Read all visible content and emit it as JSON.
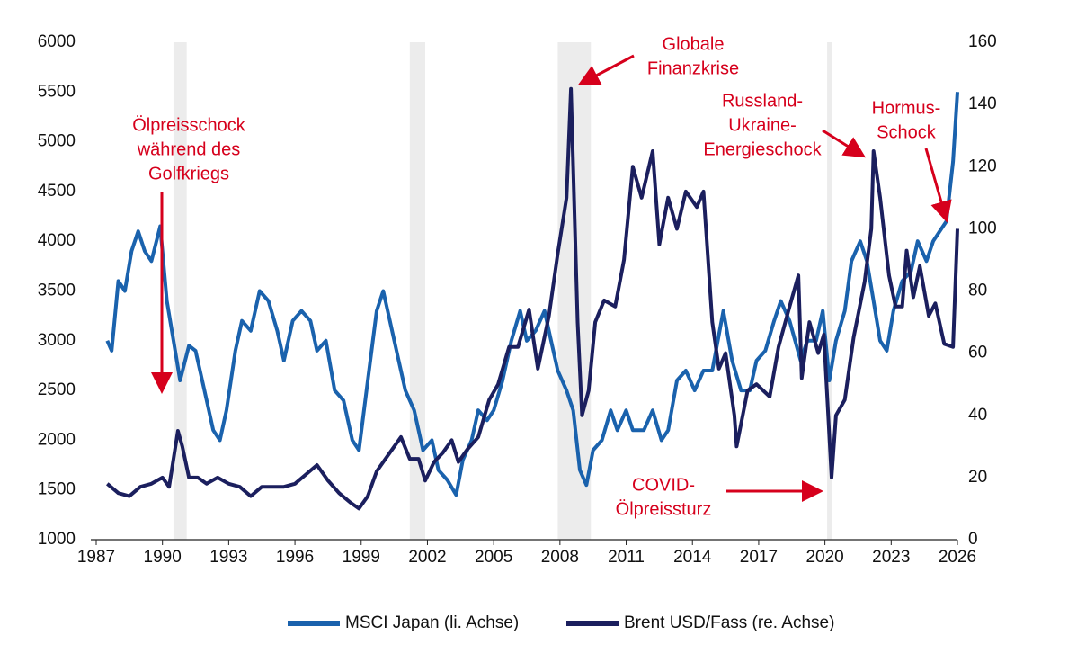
{
  "chart_data": {
    "type": "line",
    "xlim": [
      1987,
      2026
    ],
    "xticks": [
      1987,
      1990,
      1993,
      1996,
      1999,
      2002,
      2005,
      2008,
      2011,
      2014,
      2017,
      2020,
      2023,
      2026
    ],
    "ylim": [
      1000,
      6000
    ],
    "yticks": [
      1000,
      1500,
      2000,
      2500,
      3000,
      3500,
      4000,
      4500,
      5000,
      5500,
      6000
    ],
    "y2lim": [
      0,
      160
    ],
    "y2ticks": [
      0,
      20,
      40,
      60,
      80,
      100,
      120,
      140,
      160
    ],
    "grid": false,
    "legend": "bottom",
    "shaded_periods": [
      [
        1990.5,
        1991.1
      ],
      [
        2001.2,
        2001.9
      ],
      [
        2007.9,
        2009.4
      ],
      [
        2020.1,
        2020.3
      ]
    ],
    "shade_color": "#ececec",
    "annotation_color": "#d6001c",
    "annotations": [
      [
        "Ölpreisschock",
        "während des",
        "Golfkriegs"
      ],
      [
        "Globale",
        "Finanzkrise"
      ],
      [
        "Russland-",
        "Ukraine-",
        "Energieschock"
      ],
      [
        "Hormus-",
        "Schock"
      ],
      [
        "COVID-",
        "Ölpreissturz"
      ]
    ],
    "series": [
      {
        "name": "MSCI Japan (li. Achse)",
        "color": "#1a62ad",
        "x": [
          1987.5,
          1987.7,
          1988.0,
          1988.3,
          1988.6,
          1988.9,
          1989.2,
          1989.5,
          1989.9,
          1990.2,
          1990.5,
          1990.8,
          1991.2,
          1991.5,
          1991.9,
          1992.3,
          1992.6,
          1992.9,
          1993.3,
          1993.6,
          1994.0,
          1994.4,
          1994.8,
          1995.2,
          1995.5,
          1995.9,
          1996.3,
          1996.7,
          1997.0,
          1997.4,
          1997.8,
          1998.2,
          1998.6,
          1998.9,
          1999.3,
          1999.7,
          2000.0,
          2000.3,
          2000.7,
          2001.0,
          2001.4,
          2001.8,
          2002.2,
          2002.5,
          2002.9,
          2003.3,
          2003.6,
          2004.0,
          2004.3,
          2004.7,
          2005.0,
          2005.4,
          2005.8,
          2006.2,
          2006.5,
          2006.9,
          2007.3,
          2007.6,
          2007.9,
          2008.3,
          2008.6,
          2008.9,
          2009.2,
          2009.5,
          2009.9,
          2010.3,
          2010.6,
          2011.0,
          2011.3,
          2011.8,
          2012.2,
          2012.6,
          2012.9,
          2013.3,
          2013.7,
          2014.1,
          2014.5,
          2014.9,
          2015.4,
          2015.8,
          2016.2,
          2016.6,
          2016.9,
          2017.3,
          2017.7,
          2018.0,
          2018.4,
          2018.9,
          2019.2,
          2019.6,
          2019.9,
          2020.2,
          2020.5,
          2020.9,
          2021.2,
          2021.6,
          2021.9,
          2022.2,
          2022.5,
          2022.8,
          2023.1,
          2023.5,
          2023.9,
          2024.2,
          2024.6,
          2024.9,
          2025.2,
          2025.5,
          2025.8,
          2026.0
        ],
        "values": [
          3000,
          2900,
          3600,
          3500,
          3900,
          4100,
          3900,
          3800,
          4150,
          3400,
          3000,
          2600,
          2950,
          2900,
          2500,
          2100,
          2000,
          2300,
          2900,
          3200,
          3100,
          3500,
          3400,
          3100,
          2800,
          3200,
          3300,
          3200,
          2900,
          3000,
          2500,
          2400,
          2000,
          1900,
          2600,
          3300,
          3500,
          3200,
          2800,
          2500,
          2300,
          1900,
          2000,
          1700,
          1600,
          1450,
          1800,
          2000,
          2300,
          2200,
          2300,
          2600,
          3000,
          3300,
          3000,
          3100,
          3300,
          3000,
          2700,
          2500,
          2300,
          1700,
          1550,
          1900,
          2000,
          2300,
          2100,
          2300,
          2100,
          2100,
          2300,
          2000,
          2100,
          2600,
          2700,
          2500,
          2700,
          2700,
          3300,
          2800,
          2500,
          2500,
          2800,
          2900,
          3200,
          3400,
          3200,
          2800,
          3000,
          3000,
          3300,
          2600,
          3000,
          3300,
          3800,
          4000,
          3800,
          3400,
          3000,
          2900,
          3300,
          3600,
          3700,
          4000,
          3800,
          4000,
          4100,
          4200,
          4800,
          5500
        ]
      },
      {
        "name": "Brent USD/Fass (re. Achse)",
        "color": "#1b1f5e",
        "axis": "y2",
        "x": [
          1987.5,
          1988.0,
          1988.5,
          1989.0,
          1989.5,
          1990.0,
          1990.3,
          1990.7,
          1990.9,
          1991.2,
          1991.6,
          1992.0,
          1992.5,
          1993.0,
          1993.5,
          1994.0,
          1994.5,
          1995.0,
          1995.5,
          1996.0,
          1996.5,
          1997.0,
          1997.5,
          1998.0,
          1998.5,
          1998.9,
          1999.3,
          1999.7,
          2000.0,
          2000.5,
          2000.8,
          2001.2,
          2001.6,
          2001.9,
          2002.3,
          2002.7,
          2003.1,
          2003.4,
          2003.8,
          2004.3,
          2004.8,
          2005.2,
          2005.7,
          2006.1,
          2006.6,
          2007.0,
          2007.5,
          2007.9,
          2008.3,
          2008.5,
          2008.8,
          2009.0,
          2009.3,
          2009.6,
          2010.0,
          2010.5,
          2010.9,
          2011.3,
          2011.7,
          2012.2,
          2012.5,
          2012.9,
          2013.3,
          2013.7,
          2014.2,
          2014.5,
          2014.9,
          2015.2,
          2015.5,
          2015.9,
          2016.0,
          2016.5,
          2016.9,
          2017.5,
          2017.9,
          2018.4,
          2018.8,
          2018.95,
          2019.3,
          2019.7,
          2019.95,
          2020.3,
          2020.5,
          2020.9,
          2021.3,
          2021.8,
          2022.1,
          2022.2,
          2022.5,
          2022.9,
          2023.2,
          2023.5,
          2023.7,
          2024.0,
          2024.3,
          2024.7,
          2025.0,
          2025.4,
          2025.8,
          2026.0
        ],
        "values": [
          18,
          15,
          14,
          17,
          18,
          20,
          17,
          35,
          30,
          20,
          20,
          18,
          20,
          18,
          17,
          14,
          17,
          17,
          17,
          18,
          21,
          24,
          19,
          15,
          12,
          10,
          14,
          22,
          25,
          30,
          33,
          26,
          26,
          19,
          25,
          28,
          32,
          25,
          29,
          33,
          45,
          50,
          62,
          62,
          74,
          55,
          72,
          92,
          110,
          145,
          70,
          40,
          48,
          70,
          77,
          75,
          90,
          120,
          110,
          125,
          95,
          110,
          100,
          112,
          107,
          112,
          70,
          55,
          60,
          40,
          30,
          48,
          50,
          46,
          62,
          75,
          85,
          52,
          70,
          60,
          66,
          20,
          40,
          45,
          65,
          83,
          100,
          125,
          110,
          85,
          75,
          75,
          93,
          78,
          88,
          72,
          76,
          63,
          62,
          100
        ]
      }
    ]
  }
}
